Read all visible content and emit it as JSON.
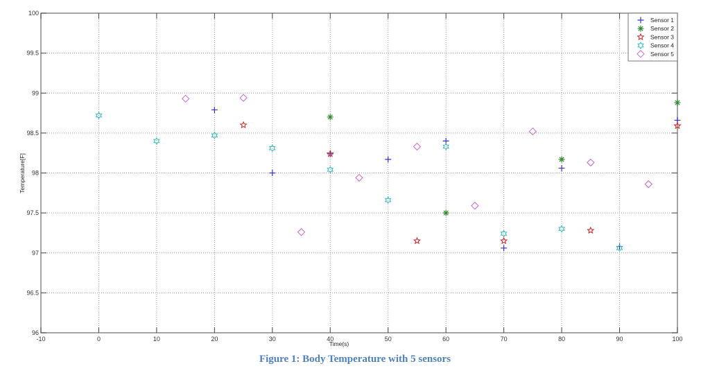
{
  "caption": "Figure 1: Body Temperature with 5 sensors",
  "chart_data": {
    "type": "scatter",
    "title": "",
    "xlabel": "Time(s)",
    "ylabel": "Temperature[F]",
    "xlim": [
      -10,
      100
    ],
    "ylim": [
      96,
      100
    ],
    "xticks": [
      -10,
      0,
      10,
      20,
      30,
      40,
      50,
      60,
      70,
      80,
      90,
      100
    ],
    "yticks": [
      96,
      96.5,
      97,
      97.5,
      98,
      98.5,
      99,
      99.5,
      100
    ],
    "ytick_labels": [
      "96",
      "96.5",
      "97",
      "97.5",
      "98",
      "98.5",
      "99",
      "99.5",
      "100"
    ],
    "grid": true,
    "legend_position": "upper right",
    "series": [
      {
        "name": "Sensor 1",
        "marker": "plus",
        "color": "#3333cc",
        "x": [
          20,
          30,
          40,
          50,
          60,
          70,
          80,
          90,
          100
        ],
        "y": [
          98.79,
          98.0,
          98.24,
          98.17,
          98.4,
          97.06,
          98.06,
          97.08,
          98.66
        ]
      },
      {
        "name": "Sensor 2",
        "marker": "asterisk",
        "color": "#2e8b2e",
        "x": [
          40,
          60,
          80,
          100
        ],
        "y": [
          98.7,
          97.5,
          98.17,
          98.88
        ]
      },
      {
        "name": "Sensor 3",
        "marker": "pentagram",
        "color": "#cc2222",
        "x": [
          25,
          40,
          55,
          70,
          85,
          100
        ],
        "y": [
          98.6,
          98.24,
          97.15,
          97.15,
          97.28,
          98.59
        ]
      },
      {
        "name": "Sensor 4",
        "marker": "hexagram",
        "color": "#33bbbb",
        "x": [
          0,
          10,
          20,
          30,
          40,
          50,
          60,
          70,
          80,
          90
        ],
        "y": [
          98.72,
          98.4,
          98.47,
          98.31,
          98.04,
          97.66,
          98.33,
          97.24,
          97.3,
          97.06
        ]
      },
      {
        "name": "Sensor 5",
        "marker": "diamond",
        "color": "#cc66cc",
        "x": [
          15,
          25,
          35,
          45,
          55,
          65,
          75,
          85,
          95
        ],
        "y": [
          98.93,
          98.94,
          97.26,
          97.94,
          98.33,
          97.59,
          98.52,
          98.13,
          97.86
        ]
      }
    ]
  }
}
